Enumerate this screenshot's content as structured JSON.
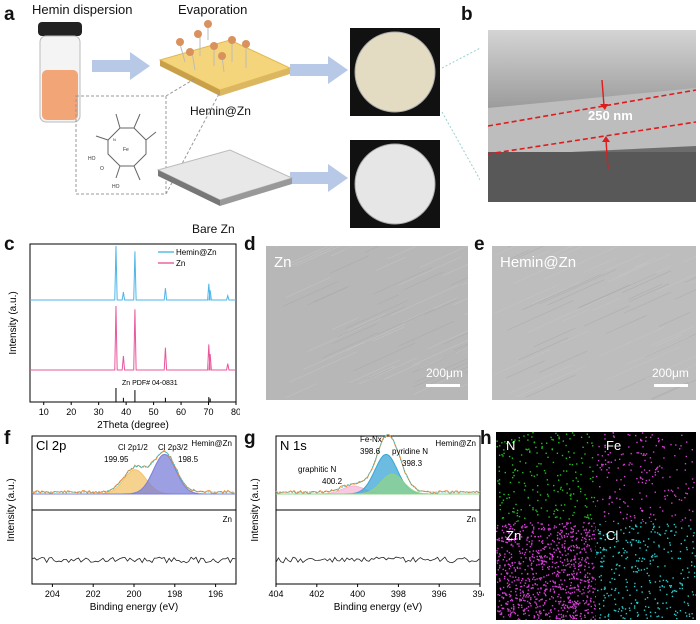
{
  "figure": {
    "panel_labels": {
      "a": "a",
      "b": "b",
      "c": "c",
      "d": "d",
      "e": "e",
      "f": "f",
      "g": "g",
      "h": "h"
    },
    "panel_a": {
      "hemin_dispersion": "Hemin dispersion",
      "evaporation": "Evaporation",
      "hemin_zn": "Hemin@Zn",
      "bare_zn": "Bare  Zn",
      "molecule_labels": {
        "fe": "Fe",
        "n": "N",
        "ho": "HO",
        "o": "O"
      }
    },
    "panel_b": {
      "thickness": "250 nm"
    },
    "panel_d": {
      "label": "Zn",
      "scale": "200μm"
    },
    "panel_e": {
      "label": "Hemin@Zn",
      "scale": "200μm"
    },
    "panel_h": {
      "n": "N",
      "fe": "Fe",
      "zn": "Zn",
      "cl": "Cl"
    },
    "colors": {
      "arrow": "#b7c9e6",
      "red_dash": "#e01b1b",
      "green_map": "#22c022",
      "magenta_map": "#d23fd2",
      "cyan_map": "#28c8c8",
      "xrd_hemin": "#4db6e8",
      "xrd_zn": "#e8579b"
    }
  },
  "chart_data": [
    {
      "panel": "c",
      "type": "line",
      "xlabel": "2Theta (degree)",
      "ylabel": "Intensity (a.u.)",
      "xlim": [
        5,
        80
      ],
      "xticks": [
        10,
        20,
        30,
        40,
        50,
        60,
        70,
        80
      ],
      "series": [
        {
          "name": "Hemin@Zn",
          "color": "#4db6e8",
          "peaks": [
            [
              36.3,
              1.0
            ],
            [
              39.0,
              0.15
            ],
            [
              43.2,
              0.9
            ],
            [
              54.3,
              0.22
            ],
            [
              70.1,
              0.3
            ],
            [
              70.6,
              0.18
            ],
            [
              77.0,
              0.08
            ]
          ]
        },
        {
          "name": "Zn",
          "color": "#e8579b",
          "peaks": [
            [
              36.3,
              1.0
            ],
            [
              39.0,
              0.22
            ],
            [
              43.2,
              0.95
            ],
            [
              54.3,
              0.35
            ],
            [
              70.1,
              0.4
            ],
            [
              70.6,
              0.25
            ],
            [
              77.0,
              0.1
            ]
          ]
        }
      ],
      "reference": {
        "label": "Zn   PDF# 04-0831",
        "peaks": [
          [
            36.3,
            1.0
          ],
          [
            39.0,
            0.3
          ],
          [
            43.2,
            0.85
          ],
          [
            54.3,
            0.3
          ],
          [
            70.1,
            0.35
          ],
          [
            70.6,
            0.25
          ]
        ]
      }
    },
    {
      "panel": "f",
      "type": "line",
      "title": "Cl 2p",
      "xlabel": "Binding energy (eV)",
      "ylabel": "Intensity (a.u.)",
      "xlim": [
        205,
        195
      ],
      "xticks": [
        204,
        202,
        200,
        198,
        196
      ],
      "top_label": "Hemin@Zn",
      "bottom_label": "Zn",
      "annotations": [
        "Cl 2p1/2",
        "199.95",
        "Cl 2p3/2",
        "198.5"
      ],
      "fit_peaks": [
        {
          "center": 199.95,
          "amp": 0.55,
          "color": "#f2c46a"
        },
        {
          "center": 198.5,
          "amp": 0.9,
          "color": "#7b7fd8"
        }
      ]
    },
    {
      "panel": "g",
      "type": "line",
      "title": "N 1s",
      "xlabel": "Binding energy (eV)",
      "ylabel": "Intensity (a.u.)",
      "xlim": [
        404,
        394
      ],
      "xticks": [
        404,
        402,
        400,
        398,
        396,
        394
      ],
      "top_label": "Hemin@Zn",
      "bottom_label": "Zn",
      "annotations": [
        "Fe-Nx",
        "398.6",
        "pyridine N",
        "398.3",
        "graphitic N",
        "400.2"
      ],
      "fit_peaks": [
        {
          "center": 400.2,
          "amp": 0.18,
          "color": "#f4b6d6"
        },
        {
          "center": 398.6,
          "amp": 0.9,
          "color": "#3aa6d6"
        },
        {
          "center": 398.3,
          "amp": 0.45,
          "color": "#8fd38a"
        }
      ]
    }
  ]
}
